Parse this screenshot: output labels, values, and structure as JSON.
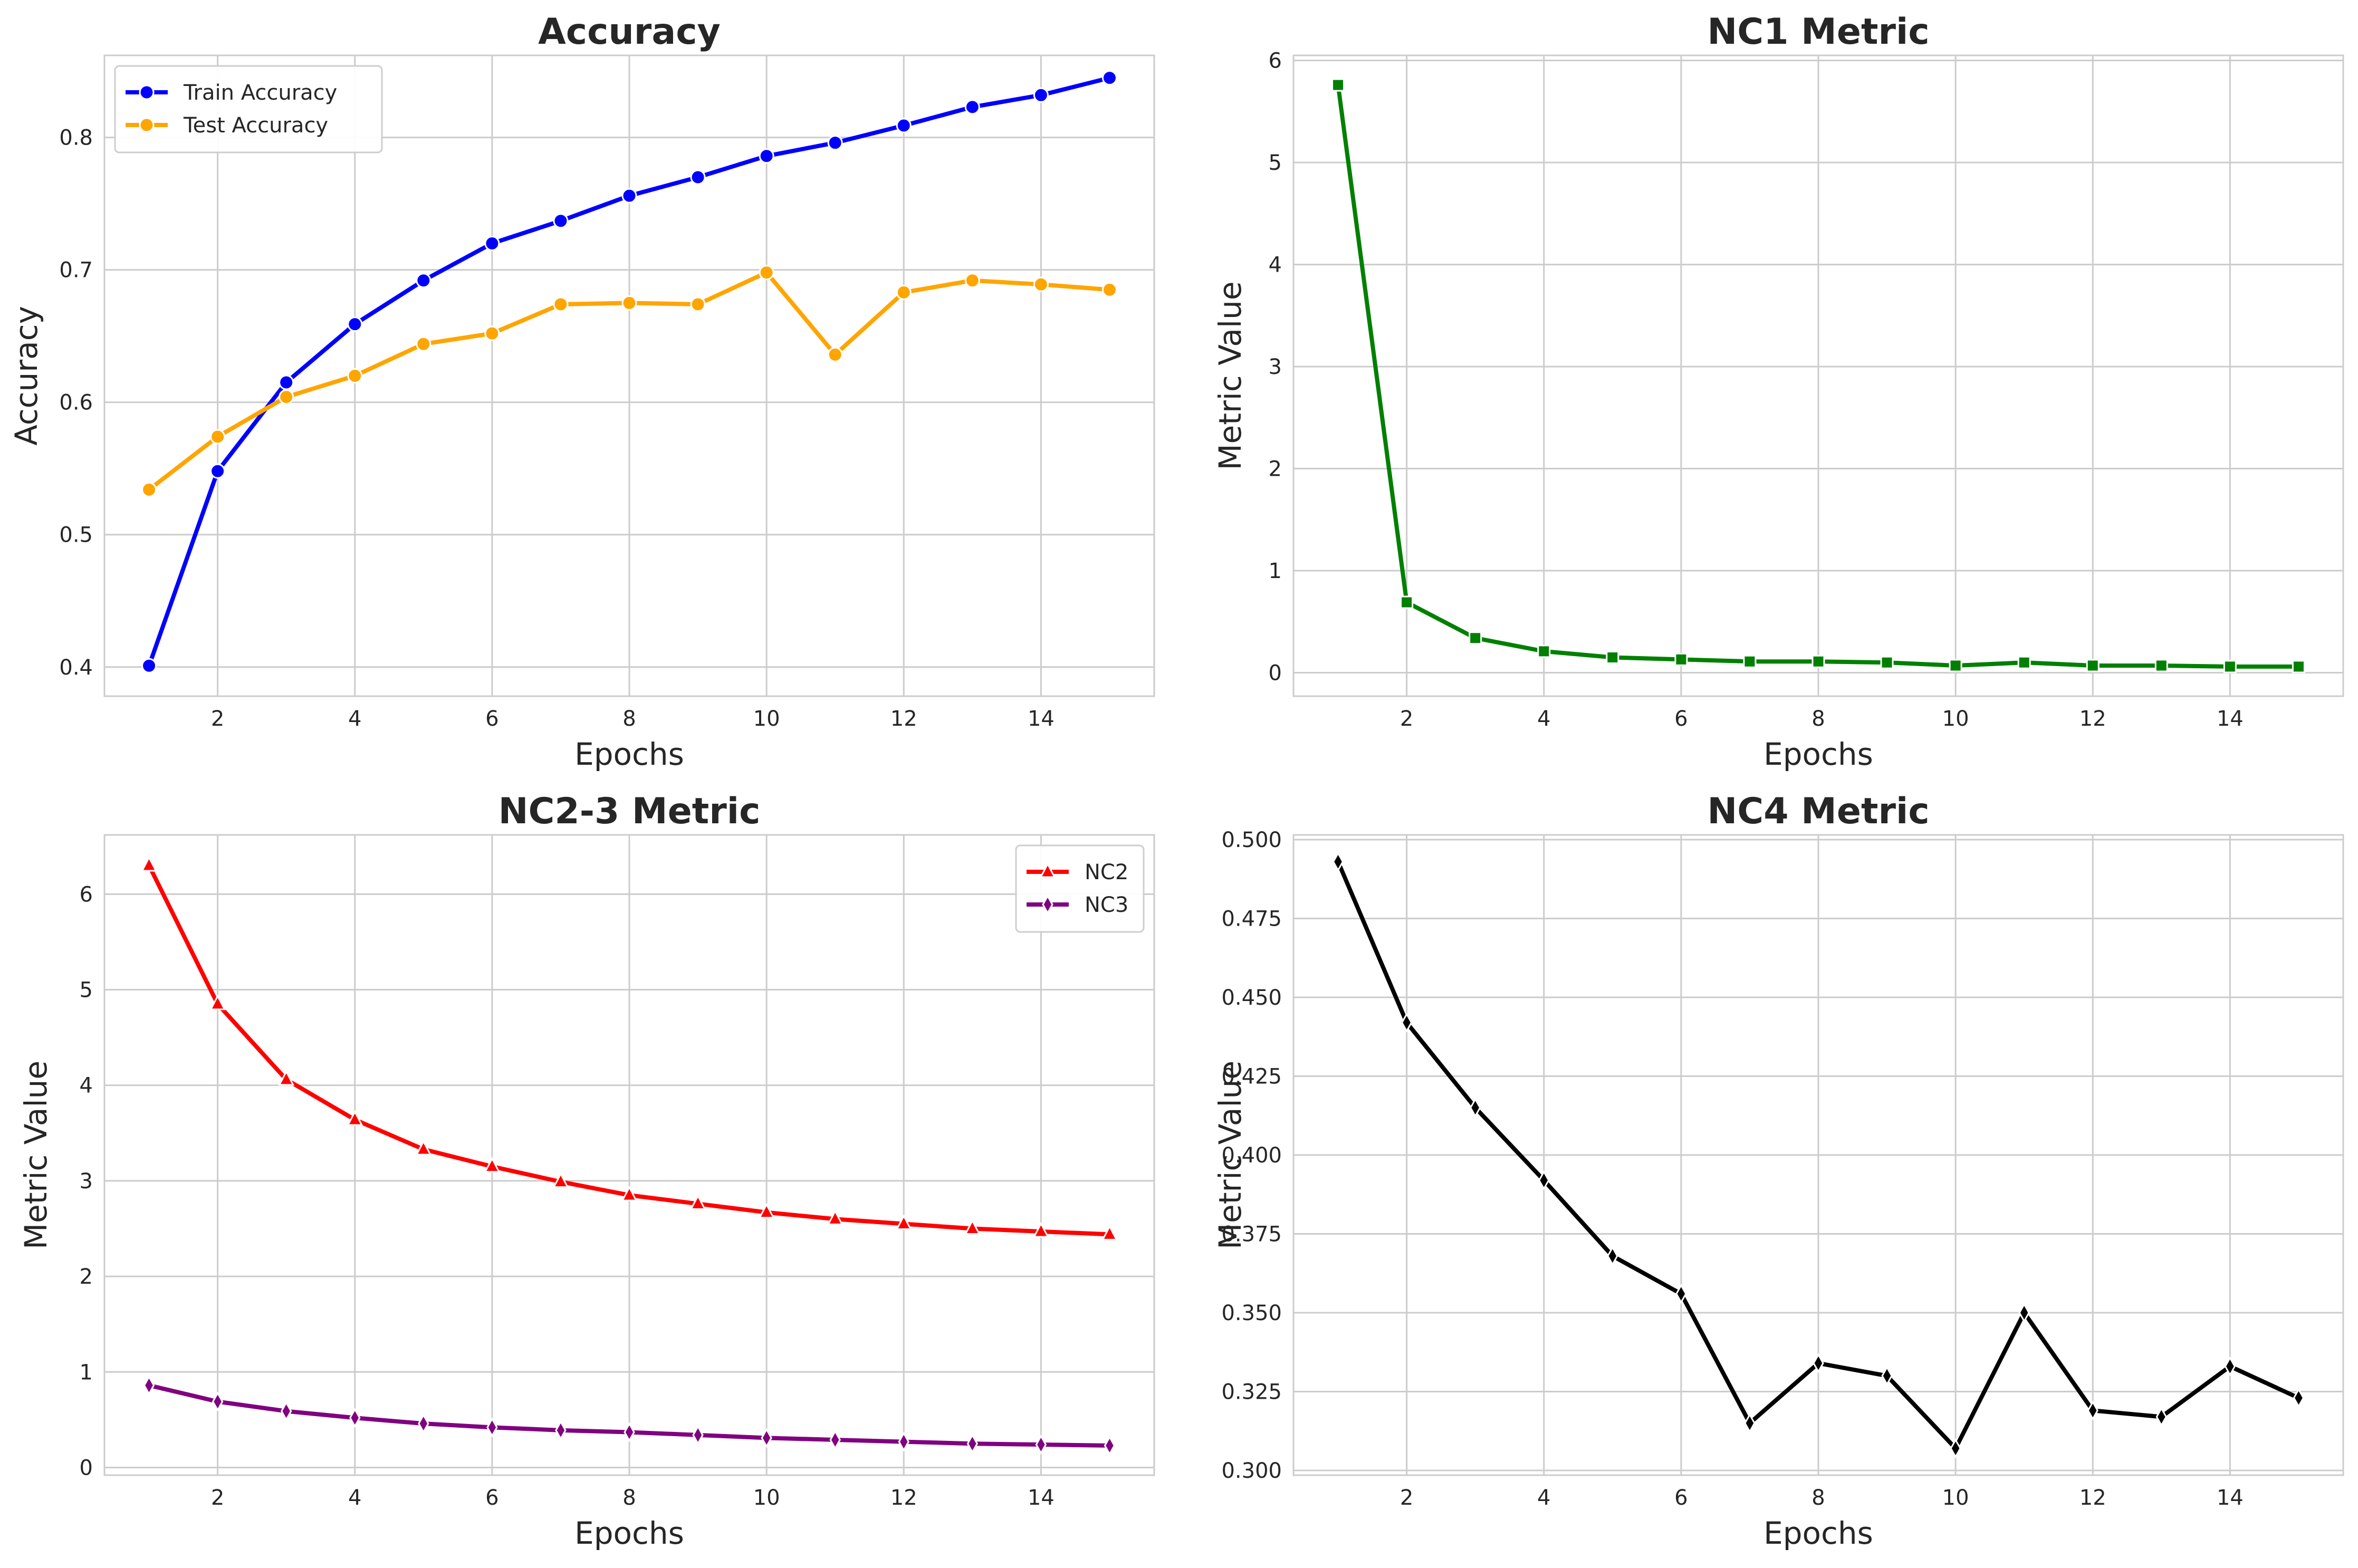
{
  "chart_data": [
    {
      "type": "line",
      "title": "Accuracy",
      "xlabel": "Epochs",
      "ylabel": "Accuracy",
      "x": [
        1,
        2,
        3,
        4,
        5,
        6,
        7,
        8,
        9,
        10,
        11,
        12,
        13,
        14,
        15
      ],
      "xlim": [
        0.35,
        15.65
      ],
      "ylim": [
        0.378,
        0.862
      ],
      "xticks": [
        2,
        4,
        6,
        8,
        10,
        12,
        14
      ],
      "yticks": [
        0.4,
        0.5,
        0.6,
        0.7,
        0.8
      ],
      "yticklabels": [
        "0.4",
        "0.5",
        "0.6",
        "0.7",
        "0.8"
      ],
      "grid": true,
      "legend": "top-left",
      "series": [
        {
          "name": "Train Accuracy",
          "color": "#0000ff",
          "marker": "circle",
          "values": [
            0.401,
            0.548,
            0.615,
            0.659,
            0.692,
            0.72,
            0.737,
            0.756,
            0.77,
            0.786,
            0.796,
            0.809,
            0.823,
            0.832,
            0.845
          ]
        },
        {
          "name": "Test Accuracy",
          "color": "#ffa500",
          "marker": "circle",
          "values": [
            0.534,
            0.574,
            0.604,
            0.62,
            0.644,
            0.652,
            0.674,
            0.675,
            0.674,
            0.698,
            0.636,
            0.683,
            0.692,
            0.689,
            0.685
          ]
        }
      ]
    },
    {
      "type": "line",
      "title": "NC1 Metric",
      "xlabel": "Epochs",
      "ylabel": "Metric Value",
      "x": [
        1,
        2,
        3,
        4,
        5,
        6,
        7,
        8,
        9,
        10,
        11,
        12,
        13,
        14,
        15
      ],
      "xlim": [
        0.35,
        15.65
      ],
      "ylim": [
        -0.23,
        6.05
      ],
      "xticks": [
        2,
        4,
        6,
        8,
        10,
        12,
        14
      ],
      "yticks": [
        0,
        1,
        2,
        3,
        4,
        5,
        6
      ],
      "yticklabels": [
        "0",
        "1",
        "2",
        "3",
        "4",
        "5",
        "6"
      ],
      "grid": true,
      "legend": "none",
      "series": [
        {
          "color": "#008000",
          "marker": "square",
          "values": [
            5.76,
            0.69,
            0.34,
            0.21,
            0.15,
            0.13,
            0.11,
            0.11,
            0.1,
            0.07,
            0.1,
            0.07,
            0.07,
            0.06,
            0.06
          ]
        }
      ]
    },
    {
      "type": "line",
      "title": "NC2-3 Metric",
      "xlabel": "Epochs",
      "ylabel": "Metric Value",
      "x": [
        1,
        2,
        3,
        4,
        5,
        6,
        7,
        8,
        9,
        10,
        11,
        12,
        13,
        14,
        15
      ],
      "xlim": [
        0.35,
        15.65
      ],
      "ylim": [
        -0.08,
        6.62
      ],
      "xticks": [
        2,
        4,
        6,
        8,
        10,
        12,
        14
      ],
      "yticks": [
        0,
        1,
        2,
        3,
        4,
        5,
        6
      ],
      "yticklabels": [
        "0",
        "1",
        "2",
        "3",
        "4",
        "5",
        "6"
      ],
      "grid": true,
      "legend": "top-right",
      "series": [
        {
          "name": "NC2",
          "color": "#ff0000",
          "marker": "triangle",
          "values": [
            6.3,
            4.85,
            4.06,
            3.64,
            3.33,
            3.15,
            2.99,
            2.85,
            2.76,
            2.67,
            2.6,
            2.55,
            2.5,
            2.47,
            2.44
          ]
        },
        {
          "name": "NC3",
          "color": "#800080",
          "marker": "diamond",
          "values": [
            0.86,
            0.69,
            0.59,
            0.52,
            0.46,
            0.42,
            0.39,
            0.37,
            0.34,
            0.31,
            0.29,
            0.27,
            0.25,
            0.24,
            0.23
          ]
        }
      ]
    },
    {
      "type": "line",
      "title": "NC4 Metric",
      "xlabel": "Epochs",
      "ylabel": "Metric Value",
      "x": [
        1,
        2,
        3,
        4,
        5,
        6,
        7,
        8,
        9,
        10,
        11,
        12,
        13,
        14,
        15
      ],
      "xlim": [
        0.35,
        15.65
      ],
      "ylim": [
        0.2985,
        0.5015
      ],
      "xticks": [
        2,
        4,
        6,
        8,
        10,
        12,
        14
      ],
      "yticks": [
        0.3,
        0.325,
        0.35,
        0.375,
        0.4,
        0.425,
        0.45,
        0.475,
        0.5
      ],
      "yticklabels": [
        "0.300",
        "0.325",
        "0.350",
        "0.375",
        "0.400",
        "0.425",
        "0.450",
        "0.475",
        "0.500"
      ],
      "grid": true,
      "legend": "none",
      "series": [
        {
          "color": "#000000",
          "marker": "diamond",
          "values": [
            0.493,
            0.442,
            0.415,
            0.392,
            0.368,
            0.356,
            0.315,
            0.334,
            0.33,
            0.307,
            0.35,
            0.319,
            0.317,
            0.333,
            0.323
          ]
        }
      ]
    }
  ]
}
